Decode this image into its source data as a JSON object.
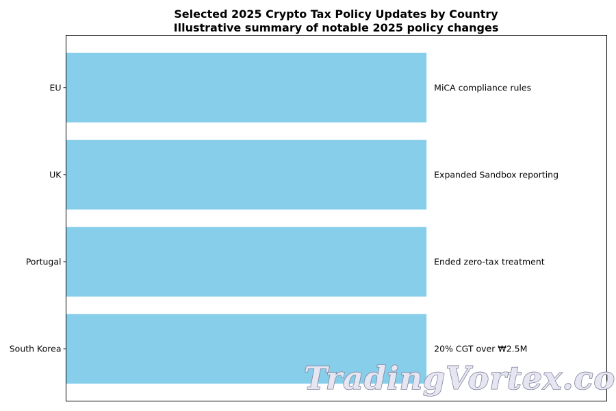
{
  "chart_data": {
    "type": "bar",
    "orientation": "horizontal",
    "title": "Selected 2025 Crypto Tax Policy Updates by Country",
    "subtitle": "Illustrative summary of notable 2025 policy changes",
    "categories": [
      "EU",
      "UK",
      "Portugal",
      "South Korea"
    ],
    "values": [
      1,
      1,
      1,
      1
    ],
    "bar_labels": [
      "MiCA compliance rules",
      "Expanded Sandbox reporting",
      "Ended zero-tax treatment",
      "20% CGT over ₩2.5M"
    ],
    "xlim": [
      0,
      1.5
    ],
    "x_axis_visible": false,
    "grid": false,
    "bar_color": "#87CEEB"
  },
  "watermark": {
    "text": "TradingVortex.com"
  }
}
